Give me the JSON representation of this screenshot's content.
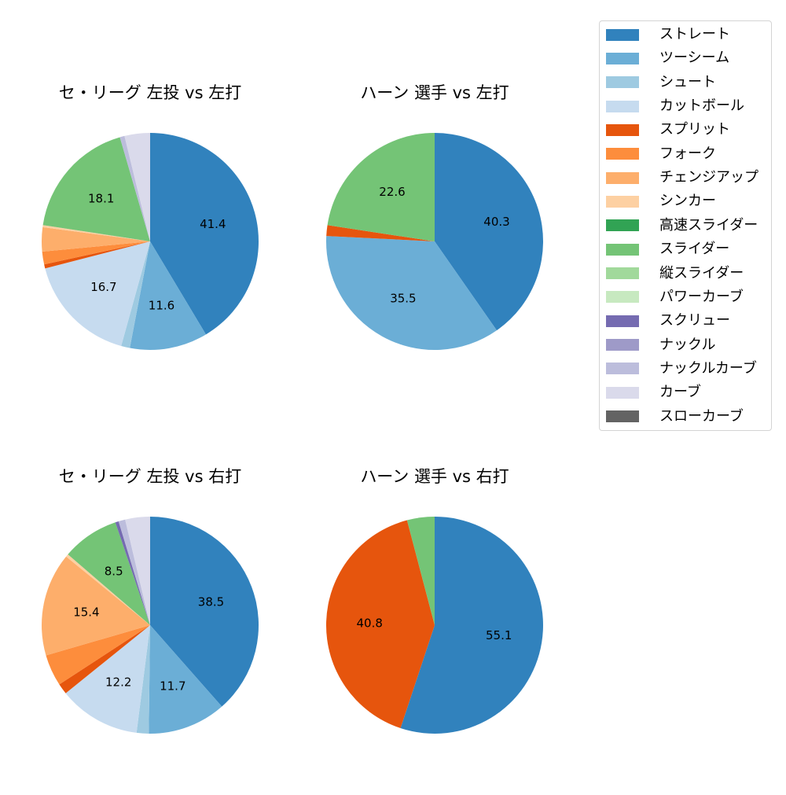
{
  "colors": {
    "ストレート": "#3182bd",
    "ツーシーム": "#6baed6",
    "シュート": "#9ecae1",
    "カットボール": "#c6dbef",
    "スプリット": "#e6550d",
    "フォーク": "#fd8d3c",
    "チェンジアップ": "#fdae6b",
    "シンカー": "#fdd0a2",
    "高速スライダー": "#31a354",
    "スライダー": "#74c476",
    "縦スライダー": "#a1d99b",
    "パワーカーブ": "#c7e9c0",
    "スクリュー": "#756bb1",
    "ナックル": "#9e9ac8",
    "ナックルカーブ": "#bcbddc",
    "カーブ": "#dadaeb",
    "スローカーブ": "#636363"
  },
  "legend": {
    "items": [
      {
        "label": "ストレート",
        "color": "#3182bd"
      },
      {
        "label": "ツーシーム",
        "color": "#6baed6"
      },
      {
        "label": "シュート",
        "color": "#9ecae1"
      },
      {
        "label": "カットボール",
        "color": "#c6dbef"
      },
      {
        "label": "スプリット",
        "color": "#e6550d"
      },
      {
        "label": "フォーク",
        "color": "#fd8d3c"
      },
      {
        "label": "チェンジアップ",
        "color": "#fdae6b"
      },
      {
        "label": "シンカー",
        "color": "#fdd0a2"
      },
      {
        "label": "高速スライダー",
        "color": "#31a354"
      },
      {
        "label": "スライダー",
        "color": "#74c476"
      },
      {
        "label": "縦スライダー",
        "color": "#a1d99b"
      },
      {
        "label": "パワーカーブ",
        "color": "#c7e9c0"
      },
      {
        "label": "スクリュー",
        "color": "#756bb1"
      },
      {
        "label": "ナックル",
        "color": "#9e9ac8"
      },
      {
        "label": "ナックルカーブ",
        "color": "#bcbddc"
      },
      {
        "label": "カーブ",
        "color": "#dadaeb"
      },
      {
        "label": "スローカーブ",
        "color": "#636363"
      }
    ]
  },
  "panels": [
    {
      "title": "セ・リーグ 左投 vs 左打"
    },
    {
      "title": "ハーン 選手 vs 左打"
    },
    {
      "title": "セ・リーグ 左投 vs 右打"
    },
    {
      "title": "ハーン 選手 vs 右打"
    }
  ],
  "chart_data": [
    {
      "type": "pie",
      "title": "セ・リーグ 左投 vs 左打",
      "startangle": 90,
      "counterclock": false,
      "label_threshold": 5,
      "categories": [
        "ストレート",
        "ツーシーム",
        "シュート",
        "カットボール",
        "スプリット",
        "フォーク",
        "チェンジアップ",
        "シンカー",
        "スライダー",
        "ナックルカーブ",
        "カーブ"
      ],
      "values": [
        41.4,
        11.6,
        1.3,
        16.7,
        0.6,
        1.9,
        3.6,
        0.3,
        18.1,
        0.7,
        3.8
      ]
    },
    {
      "type": "pie",
      "title": "ハーン 選手 vs 左打",
      "startangle": 90,
      "counterclock": false,
      "label_threshold": 5,
      "categories": [
        "ストレート",
        "ツーシーム",
        "スプリット",
        "スライダー"
      ],
      "values": [
        40.3,
        35.5,
        1.6,
        22.6
      ]
    },
    {
      "type": "pie",
      "title": "セ・リーグ 左投 vs 右打",
      "startangle": 90,
      "counterclock": false,
      "label_threshold": 5,
      "categories": [
        "ストレート",
        "ツーシーム",
        "シュート",
        "カットボール",
        "スプリット",
        "フォーク",
        "チェンジアップ",
        "シンカー",
        "スライダー",
        "スクリュー",
        "ナックルカーブ",
        "カーブ"
      ],
      "values": [
        38.5,
        11.7,
        1.8,
        12.2,
        1.6,
        4.7,
        15.4,
        0.4,
        8.5,
        0.5,
        1.0,
        3.7
      ]
    },
    {
      "type": "pie",
      "title": "ハーン 選手 vs 右打",
      "startangle": 90,
      "counterclock": false,
      "label_threshold": 5,
      "categories": [
        "ストレート",
        "スプリット",
        "スライダー"
      ],
      "values": [
        55.1,
        40.8,
        4.1
      ]
    }
  ]
}
